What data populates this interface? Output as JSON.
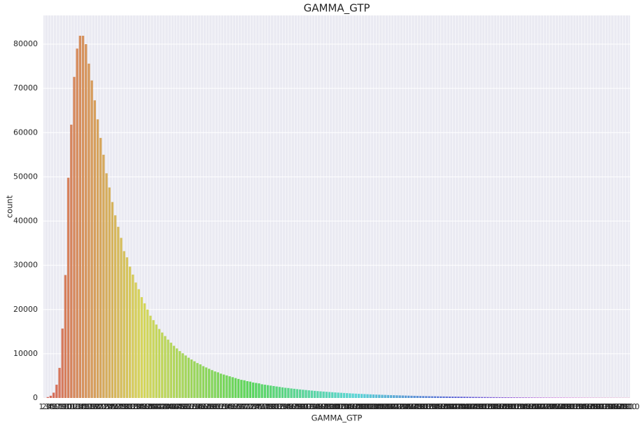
{
  "chart_data": {
    "type": "bar",
    "title": "GAMMA_GTP",
    "x_label": "GAMMA_GTP",
    "y_label": "count",
    "palette": "husl",
    "grid": true,
    "ylim": [
      0,
      86500
    ],
    "yticks": [
      0,
      10000,
      20000,
      30000,
      40000,
      50000,
      60000,
      70000,
      80000
    ],
    "categories": [
      "1.0",
      "2.0",
      "3.0",
      "4.0",
      "5.0",
      "6.0",
      "7.0",
      "8.0",
      "9.0",
      "10.0",
      "11.0",
      "12.0",
      "13.0",
      "14.0",
      "15.0",
      "16.0",
      "17.0",
      "18.0",
      "19.0",
      "20.0",
      "21.0",
      "22.0",
      "23.0",
      "24.0",
      "25.0",
      "26.0",
      "27.0",
      "28.0",
      "29.0",
      "30.0",
      "31.0",
      "32.0",
      "33.0",
      "34.0",
      "35.0",
      "36.0",
      "37.0",
      "38.0",
      "39.0",
      "40.0",
      "41.0",
      "42.0",
      "43.0",
      "44.0",
      "45.0",
      "46.0",
      "47.0",
      "48.0",
      "49.0",
      "50.0",
      "51.0",
      "52.0",
      "53.0",
      "54.0",
      "55.0",
      "56.0",
      "57.0",
      "58.0",
      "59.0",
      "60.0",
      "61.0",
      "62.0",
      "63.0",
      "64.0",
      "65.0",
      "66.0",
      "67.0",
      "68.0",
      "69.0",
      "70.0",
      "71.0",
      "72.0",
      "73.0",
      "74.0",
      "75.0",
      "76.0",
      "77.0",
      "78.0",
      "79.0",
      "80.0",
      "81.0",
      "82.0",
      "83.0",
      "84.0",
      "85.0",
      "86.0",
      "87.0",
      "88.0",
      "89.0",
      "90.0",
      "91.0",
      "92.0",
      "93.0",
      "94.0",
      "95.0",
      "96.0",
      "97.0",
      "98.0",
      "99.0",
      "100.0",
      "101.0",
      "102.0",
      "103.0",
      "104.0",
      "105.0",
      "106.0",
      "107.0",
      "108.0",
      "109.0",
      "110.0",
      "111.0",
      "112.0",
      "113.0",
      "114.0",
      "115.0",
      "116.0",
      "117.0",
      "118.0",
      "119.0",
      "120.0",
      "121.0",
      "122.0",
      "123.0",
      "124.0",
      "125.0",
      "126.0",
      "127.0",
      "128.0",
      "129.0",
      "130.0",
      "131.0",
      "132.0",
      "133.0",
      "134.0",
      "135.0",
      "136.0",
      "137.0",
      "138.0",
      "139.0",
      "140.0",
      "141.0",
      "142.0",
      "143.0",
      "144.0",
      "145.0",
      "146.0",
      "147.0",
      "148.0",
      "149.0",
      "150.0",
      "151.0",
      "152.0",
      "153.0",
      "154.0",
      "155.0",
      "156.0",
      "157.0",
      "158.0",
      "159.0",
      "160.0",
      "161.0",
      "162.0",
      "163.0",
      "164.0",
      "165.0",
      "166.0",
      "167.0",
      "168.0",
      "169.0",
      "170.0",
      "171.0",
      "172.0",
      "173.0",
      "174.0",
      "175.0",
      "176.0",
      "177.0",
      "178.0",
      "179.0",
      "180.0",
      "181.0",
      "182.0",
      "183.0",
      "184.0",
      "185.0",
      "186.0",
      "187.0",
      "188.0",
      "189.0",
      "190.0",
      "191.0",
      "192.0",
      "193.0",
      "194.0",
      "195.0",
      "196.0",
      "197.0",
      "198.0",
      "199.0",
      "200.0"
    ],
    "values": [
      10,
      200,
      500,
      1200,
      3000,
      6800,
      15700,
      27800,
      49800,
      61800,
      72600,
      79000,
      81900,
      81900,
      80000,
      75600,
      71800,
      67300,
      63000,
      58800,
      55000,
      50800,
      47600,
      44300,
      41300,
      38700,
      36200,
      33200,
      31800,
      29700,
      27900,
      26100,
      24600,
      22800,
      21400,
      20000,
      18600,
      17600,
      16600,
      15600,
      14800,
      14000,
      13200,
      12500,
      11800,
      11200,
      10600,
      10100,
      9600,
      9100,
      8700,
      8300,
      7900,
      7600,
      7200,
      6900,
      6600,
      6300,
      6000,
      5800,
      5500,
      5300,
      5100,
      4900,
      4700,
      4500,
      4300,
      4100,
      4000,
      3800,
      3700,
      3500,
      3400,
      3300,
      3100,
      3000,
      2900,
      2800,
      2700,
      2600,
      2500,
      2400,
      2300,
      2250,
      2150,
      2080,
      2000,
      1930,
      1860,
      1800,
      1730,
      1670,
      1610,
      1550,
      1500,
      1450,
      1400,
      1350,
      1300,
      1250,
      1210,
      1170,
      1130,
      1090,
      1050,
      1010,
      980,
      940,
      910,
      880,
      850,
      820,
      790,
      760,
      740,
      710,
      690,
      660,
      640,
      620,
      600,
      580,
      560,
      540,
      520,
      500,
      485,
      470,
      450,
      435,
      420,
      405,
      390,
      380,
      365,
      350,
      340,
      330,
      315,
      305,
      295,
      285,
      275,
      265,
      255,
      245,
      235,
      228,
      220,
      212,
      205,
      198,
      190,
      184,
      178,
      172,
      166,
      160,
      154,
      149,
      144,
      139,
      134,
      129,
      125,
      120,
      116,
      112,
      108,
      104,
      100,
      97,
      93,
      90,
      87,
      84,
      81,
      78,
      75,
      72,
      70,
      67,
      65,
      63,
      60,
      58,
      56,
      54,
      52,
      50,
      48,
      46,
      45,
      43,
      41,
      40,
      38,
      37,
      35,
      34
    ]
  }
}
